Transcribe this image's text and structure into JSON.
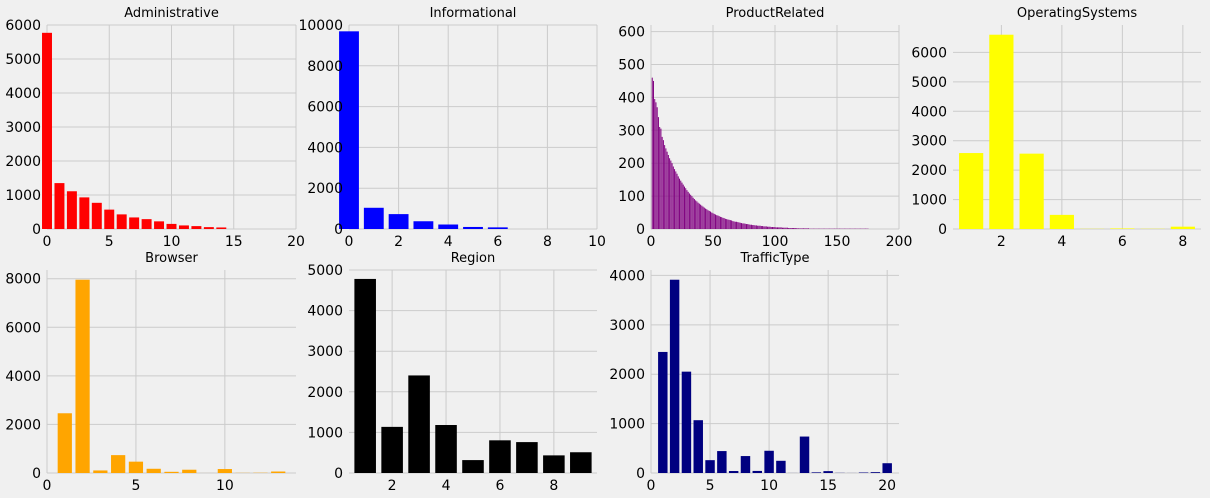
{
  "colors": {
    "background": "#f0f0f0",
    "grid": "#cbcbcb"
  },
  "chart_data": [
    {
      "type": "bar",
      "title": "Administrative",
      "color": "#ff0000",
      "x": [
        0,
        1,
        2,
        3,
        4,
        5,
        6,
        7,
        8,
        9,
        10,
        11,
        12,
        13,
        14
      ],
      "values": [
        5770,
        1350,
        1110,
        930,
        770,
        570,
        430,
        340,
        290,
        225,
        150,
        105,
        85,
        55,
        45
      ],
      "xlim": [
        0,
        20
      ],
      "ylim": [
        0,
        6000
      ],
      "xticks": [
        0,
        5,
        10,
        15,
        20
      ],
      "xtick_labels": [
        "0",
        "5",
        "10",
        "15",
        "20"
      ],
      "yticks": [
        0,
        1000,
        2000,
        3000,
        4000,
        5000,
        6000
      ],
      "ytick_labels": [
        "0",
        "1000",
        "2000",
        "3000",
        "4000",
        "5000",
        "6000"
      ]
    },
    {
      "type": "bar",
      "title": "Informational",
      "color": "#0000ff",
      "x": [
        0,
        1,
        2,
        3,
        4,
        5,
        6
      ],
      "values": [
        9690,
        1040,
        730,
        380,
        220,
        100,
        80
      ],
      "xlim": [
        0,
        10
      ],
      "ylim": [
        0,
        10000
      ],
      "xticks": [
        0,
        2,
        4,
        6,
        8,
        10
      ],
      "xtick_labels": [
        "0",
        "2",
        "4",
        "6",
        "8",
        "10"
      ],
      "yticks": [
        0,
        2000,
        4000,
        6000,
        8000,
        10000
      ],
      "ytick_labels": [
        "0",
        "2000",
        "4000",
        "6000",
        "8000",
        "10000"
      ]
    },
    {
      "type": "bar",
      "title": "ProductRelated",
      "color": "#800080",
      "x": [
        1,
        2,
        3,
        4,
        5,
        6,
        7,
        8,
        9,
        10,
        11,
        12,
        13,
        14,
        15,
        16,
        17,
        18,
        19,
        20,
        21,
        22,
        23,
        24,
        25,
        26,
        27,
        28,
        29,
        30,
        31,
        32,
        33,
        34,
        35,
        36,
        37,
        38,
        39,
        40,
        41,
        42,
        43,
        44,
        45,
        46,
        47,
        48,
        49,
        50,
        51,
        52,
        53,
        54,
        55,
        56,
        57,
        58,
        59,
        60,
        61,
        62,
        63,
        64,
        65,
        66,
        67,
        68,
        69,
        70,
        71,
        72,
        73,
        74,
        75,
        76,
        77,
        78,
        79,
        80,
        81,
        82,
        83,
        84,
        85,
        86,
        87,
        88,
        89,
        90,
        91,
        92,
        93,
        94,
        95,
        96,
        97,
        98,
        99,
        100,
        101,
        102,
        103,
        104,
        105,
        106,
        107,
        108,
        109,
        110,
        111,
        112,
        113,
        114,
        115,
        116,
        117,
        118,
        119,
        120,
        121,
        122,
        123,
        124,
        125,
        126,
        127,
        128,
        129,
        130,
        131,
        132,
        133,
        134,
        135,
        136,
        137,
        138,
        139,
        140,
        141,
        142,
        143,
        144,
        145,
        146,
        147,
        148,
        149,
        150,
        151,
        152,
        153,
        154,
        155,
        156,
        157,
        158,
        159,
        160,
        161,
        162,
        163,
        164,
        165,
        166,
        167,
        168,
        169,
        170,
        171,
        172,
        173,
        174,
        175
      ],
      "values": [
        460,
        450,
        395,
        385,
        370,
        340,
        310,
        305,
        280,
        270,
        255,
        245,
        235,
        225,
        215,
        208,
        200,
        190,
        182,
        175,
        168,
        160,
        153,
        147,
        141,
        135,
        129,
        124,
        118,
        113,
        108,
        104,
        100,
        95,
        91,
        87,
        84,
        80,
        77,
        74,
        71,
        68,
        65,
        62,
        60,
        57,
        55,
        53,
        50,
        48,
        46,
        44,
        42,
        41,
        39,
        37,
        36,
        34,
        33,
        31,
        30,
        29,
        28,
        27,
        26,
        24,
        23,
        22,
        22,
        21,
        20,
        19,
        18,
        17,
        17,
        16,
        15,
        15,
        14,
        13,
        13,
        12,
        12,
        11,
        11,
        10,
        10,
        10,
        9,
        9,
        8,
        8,
        8,
        7,
        7,
        7,
        6,
        6,
        6,
        6,
        5,
        5,
        5,
        5,
        5,
        4,
        4,
        4,
        4,
        4,
        3,
        3,
        3,
        3,
        3,
        3,
        3,
        2,
        2,
        2,
        2,
        2,
        2,
        2,
        2,
        2,
        2,
        1,
        1,
        1,
        1,
        1,
        1,
        1,
        1,
        1,
        1,
        1,
        1,
        1,
        1,
        1,
        1,
        1,
        1,
        1,
        1,
        1,
        1,
        1,
        1,
        1,
        1,
        1,
        1,
        1,
        1,
        1,
        1,
        1,
        1,
        1,
        1,
        1,
        1,
        1,
        1,
        1,
        1,
        1,
        1,
        1,
        1,
        1,
        1
      ],
      "xlim": [
        0,
        200
      ],
      "ylim": [
        0,
        620
      ],
      "xticks": [
        0,
        50,
        100,
        150,
        200
      ],
      "xtick_labels": [
        "0",
        "50",
        "100",
        "150",
        "200"
      ],
      "yticks": [
        0,
        100,
        200,
        300,
        400,
        500,
        600
      ],
      "ytick_labels": [
        "0",
        "100",
        "200",
        "300",
        "400",
        "500",
        "600"
      ]
    },
    {
      "type": "bar",
      "title": "OperatingSystems",
      "color": "#ffff00",
      "x": [
        1,
        2,
        3,
        4,
        5,
        6,
        7,
        8
      ],
      "values": [
        2580,
        6600,
        2560,
        480,
        6,
        19,
        7,
        79
      ],
      "xlim": [
        0.4,
        8.6
      ],
      "ylim": [
        0,
        6930
      ],
      "xticks": [
        2,
        4,
        6,
        8
      ],
      "xtick_labels": [
        "2",
        "4",
        "6",
        "8"
      ],
      "yticks": [
        0,
        1000,
        2000,
        3000,
        4000,
        5000,
        6000
      ],
      "ytick_labels": [
        "0",
        "1000",
        "2000",
        "3000",
        "4000",
        "5000",
        "6000"
      ]
    },
    {
      "type": "bar",
      "title": "Browser",
      "color": "#ffa500",
      "x": [
        1,
        2,
        3,
        4,
        5,
        6,
        7,
        8,
        9,
        10,
        11,
        12,
        13
      ],
      "values": [
        2460,
        7960,
        105,
        736,
        467,
        174,
        49,
        135,
        1,
        163,
        6,
        10,
        61
      ],
      "xlim": [
        0,
        14
      ],
      "ylim": [
        0,
        8360
      ],
      "xticks": [
        0,
        5,
        10
      ],
      "xtick_labels": [
        "0",
        "5",
        "10"
      ],
      "yticks": [
        0,
        2000,
        4000,
        6000,
        8000
      ],
      "ytick_labels": [
        "0",
        "2000",
        "4000",
        "6000",
        "8000"
      ]
    },
    {
      "type": "bar",
      "title": "Region",
      "color": "#000000",
      "x": [
        1,
        2,
        3,
        4,
        5,
        6,
        7,
        8,
        9
      ],
      "values": [
        4780,
        1136,
        2403,
        1182,
        318,
        805,
        761,
        434,
        511
      ],
      "xlim": [
        0.4,
        9.6
      ],
      "ylim": [
        0,
        5000
      ],
      "xticks": [
        2,
        4,
        6,
        8
      ],
      "xtick_labels": [
        "2",
        "4",
        "6",
        "8"
      ],
      "yticks": [
        0,
        1000,
        2000,
        3000,
        4000,
        5000
      ],
      "ytick_labels": [
        "0",
        "1000",
        "2000",
        "3000",
        "4000",
        "5000"
      ]
    },
    {
      "type": "bar",
      "title": "TrafficType",
      "color": "#000080",
      "x": [
        1,
        2,
        3,
        4,
        5,
        6,
        7,
        8,
        9,
        10,
        11,
        12,
        13,
        14,
        15,
        16,
        17,
        18,
        19,
        20
      ],
      "values": [
        2451,
        3913,
        2052,
        1069,
        260,
        444,
        40,
        343,
        42,
        450,
        247,
        1,
        738,
        13,
        38,
        3,
        1,
        10,
        17,
        198
      ],
      "xlim": [
        0,
        21
      ],
      "ylim": [
        0,
        4110
      ],
      "xticks": [
        0,
        5,
        10,
        15,
        20
      ],
      "xtick_labels": [
        "0",
        "5",
        "10",
        "15",
        "20"
      ],
      "yticks": [
        0,
        1000,
        2000,
        3000,
        4000
      ],
      "ytick_labels": [
        "0",
        "1000",
        "2000",
        "3000",
        "4000"
      ]
    }
  ]
}
